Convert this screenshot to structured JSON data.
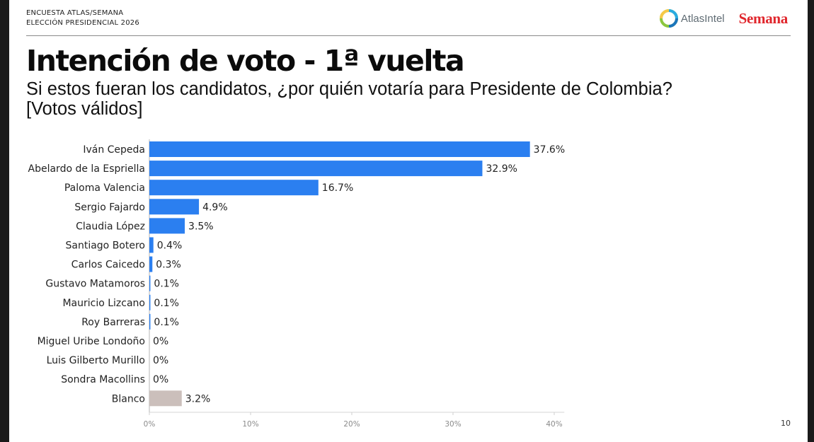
{
  "header": {
    "survey_line1": "ENCUESTA ATLAS/SEMANA",
    "survey_line2": "ELECCIÓN PRESIDENCIAL 2026",
    "atlas_logo_text": "AtlasIntel",
    "semana_logo_text": "Semana"
  },
  "title": "Intención de voto - 1ª vuelta",
  "subtitle": "Si estos fueran los candidatos, ¿por quién votaría para Presidente de Colombia? [Votos válidos]",
  "page_number": "10",
  "colors": {
    "candidate_bar": "#2b7ff0",
    "blank_bar": "#cbbfbb",
    "axis_tick_text": "#8a8a8a"
  },
  "chart_data": {
    "type": "bar",
    "orientation": "horizontal",
    "categories": [
      "Iván Cepeda",
      "Abelardo de la Espriella",
      "Paloma Valencia",
      "Sergio Fajardo",
      "Claudia López",
      "Santiago Botero",
      "Carlos Caicedo",
      "Gustavo Matamoros",
      "Mauricio Lizcano",
      "Roy Barreras",
      "Miguel Uribe Londoño",
      "Luis Gilberto Murillo",
      "Sondra Macollins",
      "Blanco"
    ],
    "values": [
      37.6,
      32.9,
      16.7,
      4.9,
      3.5,
      0.4,
      0.3,
      0.1,
      0.1,
      0.1,
      0,
      0,
      0,
      3.2
    ],
    "value_labels": [
      "37.6%",
      "32.9%",
      "16.7%",
      "4.9%",
      "3.5%",
      "0.4%",
      "0.3%",
      "0.1%",
      "0.1%",
      "0.1%",
      "0%",
      "0%",
      "0%",
      "3.2%"
    ],
    "xticks": [
      "0%",
      "10%",
      "20%",
      "30%",
      "40%"
    ],
    "xtick_values": [
      0,
      10,
      20,
      30,
      40
    ],
    "xlim": [
      0,
      41
    ],
    "grid": false,
    "legend": "none"
  }
}
